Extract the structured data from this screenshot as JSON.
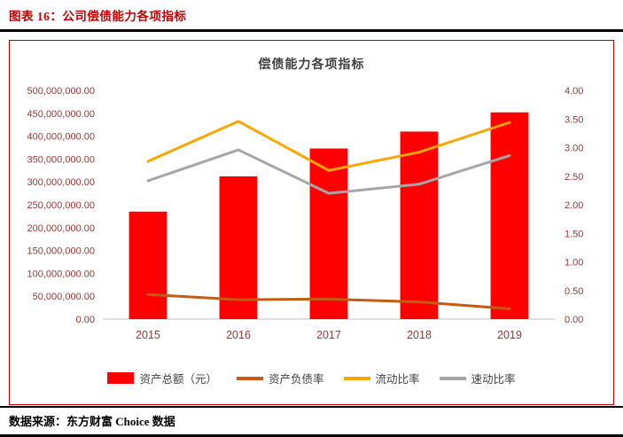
{
  "page": {
    "header_title": "图表 16：公司偿债能力各项指标",
    "footer_text": "数据来源：东方财富 Choice 数据",
    "accent_color": "#c00000"
  },
  "chart_data": {
    "type": "bar+line",
    "title": "偿债能力各项指标",
    "categories": [
      "2015",
      "2016",
      "2017",
      "2018",
      "2019"
    ],
    "bar_series": {
      "name": "资产总额（元）",
      "axis": "left",
      "color": "#ff0000",
      "values": [
        235000000,
        312000000,
        373000000,
        410000000,
        452000000
      ]
    },
    "line_series": [
      {
        "name": "资产负债率",
        "axis": "right",
        "color": "#c55a11",
        "values": [
          0.43,
          0.34,
          0.35,
          0.3,
          0.18
        ]
      },
      {
        "name": "流动比率",
        "axis": "right",
        "color": "#ffa500",
        "values": [
          2.76,
          3.46,
          2.6,
          2.92,
          3.44
        ]
      },
      {
        "name": "速动比率",
        "axis": "right",
        "color": "#a6a6a6",
        "values": [
          2.42,
          2.96,
          2.2,
          2.36,
          2.86
        ]
      }
    ],
    "left_axis": {
      "min": 0,
      "max": 500000000,
      "step": 50000000,
      "tick_format": "#,##0.00"
    },
    "right_axis": {
      "min": 0,
      "max": 4,
      "step": 0.5,
      "tick_format": "0.00"
    },
    "axis_text_color": "#963634",
    "axis_line_color": "#bfbfbf",
    "grid": false,
    "legend_position": "bottom"
  }
}
